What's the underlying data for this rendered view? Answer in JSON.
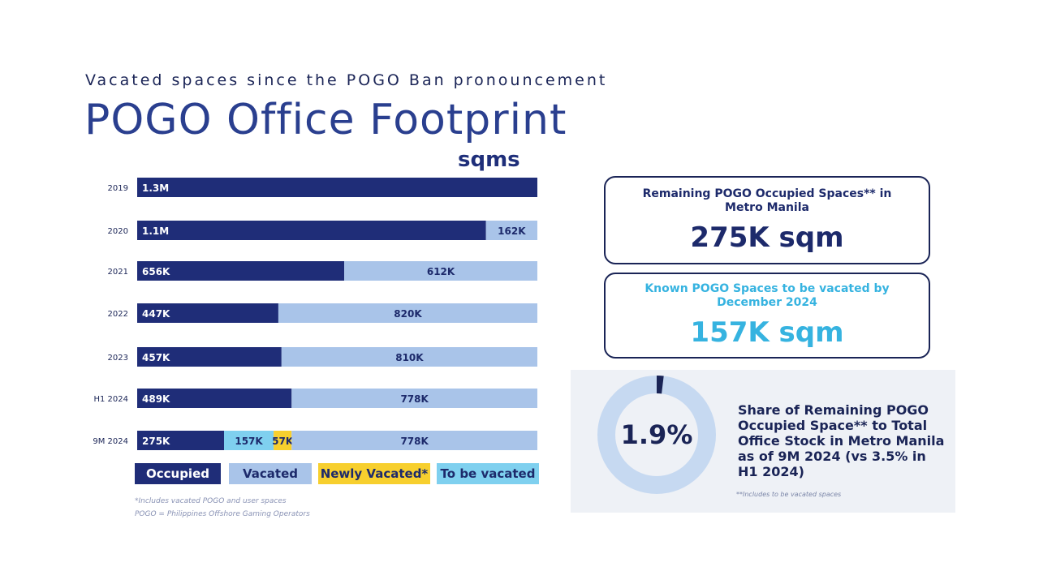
{
  "header": {
    "subtitle": "Vacated spaces since the POGO Ban pronouncement",
    "title": "POGO Office Footprint",
    "unit": "sqms"
  },
  "chart_data": {
    "type": "bar",
    "orientation": "horizontal",
    "stacked": true,
    "categories": [
      "2019",
      "2020",
      "2021",
      "2022",
      "2023",
      "H1 2024",
      "9M 2024"
    ],
    "series": [
      {
        "name": "Occupied",
        "color": "#1f2d78",
        "values": [
          1300,
          1100,
          656,
          447,
          457,
          489,
          275
        ],
        "labels": [
          "1.3M",
          "1.1M",
          "656K",
          "447K",
          "457K",
          "489K",
          "275K"
        ]
      },
      {
        "name": "To be vacated",
        "color": "#7fd0ef",
        "values": [
          0,
          0,
          0,
          0,
          0,
          0,
          157
        ],
        "labels": [
          "",
          "",
          "",
          "",
          "",
          "",
          "157K"
        ]
      },
      {
        "name": "Newly Vacated*",
        "color": "#f7cf2e",
        "values": [
          0,
          0,
          0,
          0,
          0,
          0,
          57
        ],
        "labels": [
          "",
          "",
          "",
          "",
          "",
          "",
          "57K"
        ]
      },
      {
        "name": "Vacated",
        "color": "#a9c4e9",
        "values": [
          0,
          162,
          612,
          820,
          810,
          778,
          778
        ],
        "labels": [
          "",
          "162K",
          "612K",
          "820K",
          "810K",
          "778K",
          "778K"
        ]
      }
    ],
    "legend": [
      "Occupied",
      "Vacated",
      "Newly Vacated*",
      "To be vacated"
    ],
    "legend_position": "bottom",
    "grid": false
  },
  "footnotes": [
    "*Includes vacated POGO and user spaces",
    "POGO = Philippines Offshore Gaming Operators"
  ],
  "cards": [
    {
      "label": "Remaining POGO Occupied Spaces** in Metro Manila",
      "value": "275K sqm"
    },
    {
      "label": "Known POGO Spaces to be vacated by December 2024",
      "value": "157K sqm"
    }
  ],
  "share": {
    "percent_label": "1.9%",
    "percent_value": 1.9,
    "text": "Share of Remaining POGO Occupied Space** to Total Office Stock in Metro Manila as of 9M 2024 (vs 3.5% in H1 2024)",
    "note": "**Includes to be vacated spaces",
    "ring_color": "#c6d9f1",
    "fill_color": "#1a2456"
  }
}
